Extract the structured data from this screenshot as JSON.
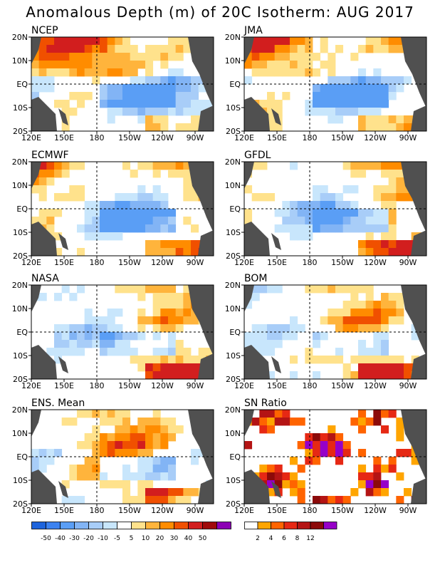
{
  "title": "Anomalous Depth (m) of 20C Isotherm: AUG 2017",
  "axes": {
    "x_ticks": [
      "120E",
      "150E",
      "180",
      "150W",
      "120W",
      "90W"
    ],
    "y_ticks": [
      "20N",
      "10N",
      "EQ",
      "10S",
      "20S"
    ]
  },
  "anomaly_scale": {
    "levels": [
      "-50",
      "-40",
      "-30",
      "-20",
      "-10",
      "-5",
      "5",
      "10",
      "20",
      "30",
      "40",
      "50"
    ],
    "colors": [
      "#1e64dc",
      "#3c82f0",
      "#5a9ef5",
      "#82b4f5",
      "#a8cdf8",
      "#c8e6fc",
      "#ffffff",
      "#ffe28c",
      "#ffb43c",
      "#ff8c00",
      "#f05000",
      "#d21e1e",
      "#a00a0a",
      "#8c00b4"
    ]
  },
  "sn_scale": {
    "levels": [
      "2",
      "4",
      "6",
      "8",
      "12"
    ],
    "colors": [
      "#ffffff",
      "#ffa500",
      "#ff6400",
      "#e62814",
      "#b41414",
      "#8c0a0a",
      "#9600c8"
    ]
  },
  "chart_data": [
    {
      "type": "heatmap",
      "title": "NCEP",
      "x_range": [
        "120E",
        "80W"
      ],
      "y_range": [
        "20S",
        "20N"
      ]
    },
    {
      "type": "heatmap",
      "title": "JMA",
      "x_range": [
        "120E",
        "80W"
      ],
      "y_range": [
        "20S",
        "20N"
      ]
    },
    {
      "type": "heatmap",
      "title": "ECMWF",
      "x_range": [
        "120E",
        "80W"
      ],
      "y_range": [
        "20S",
        "20N"
      ]
    },
    {
      "type": "heatmap",
      "title": "GFDL",
      "x_range": [
        "120E",
        "80W"
      ],
      "y_range": [
        "20S",
        "20N"
      ]
    },
    {
      "type": "heatmap",
      "title": "NASA",
      "x_range": [
        "120E",
        "80W"
      ],
      "y_range": [
        "20S",
        "20N"
      ]
    },
    {
      "type": "heatmap",
      "title": "BOM",
      "x_range": [
        "120E",
        "80W"
      ],
      "y_range": [
        "20S",
        "20N"
      ]
    },
    {
      "type": "heatmap",
      "title": "ENS. Mean",
      "x_range": [
        "120E",
        "80W"
      ],
      "y_range": [
        "20S",
        "20N"
      ]
    },
    {
      "type": "heatmap",
      "title": "SN Ratio",
      "x_range": [
        "120E",
        "80W"
      ],
      "y_range": [
        "20S",
        "20N"
      ]
    }
  ]
}
